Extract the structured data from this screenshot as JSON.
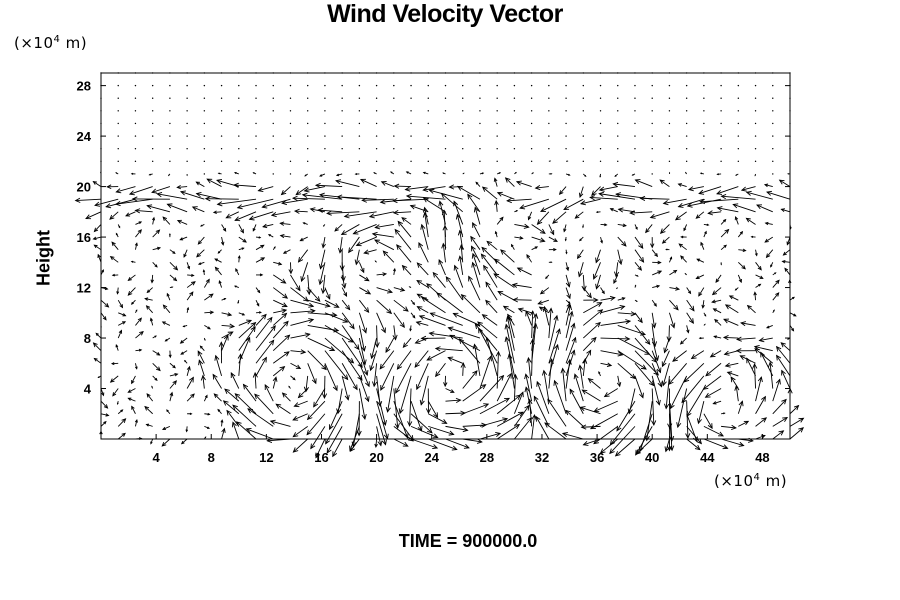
{
  "chart_data": {
    "type": "vector-field",
    "title": "Wind Velocity Vector",
    "ylabel": "Height",
    "xlabel": "",
    "x_unit": {
      "prefix": "(×10",
      "exp": "4",
      "suffix": " m)"
    },
    "y_unit": {
      "prefix": "(×10",
      "exp": "4",
      "suffix": " m)"
    },
    "xlim": [
      0,
      50
    ],
    "ylim": [
      0,
      29
    ],
    "x_ticks": [
      4,
      8,
      12,
      16,
      20,
      24,
      28,
      32,
      36,
      40,
      44,
      48
    ],
    "y_ticks": [
      4,
      8,
      12,
      16,
      20,
      24,
      28
    ],
    "grid": {
      "x0": 0,
      "x1": 50,
      "nx": 41,
      "y0": 0,
      "y1": 29,
      "ny": 30
    },
    "vortices": [
      {
        "x": 25.5,
        "y": 4.5,
        "s": 1.0,
        "w": 3.5,
        "h": 3.5
      },
      {
        "x": 14.0,
        "y": 4.5,
        "s": -0.8,
        "w": 3.0,
        "h": 3.5
      },
      {
        "x": 36.5,
        "y": 4.5,
        "s": -0.9,
        "w": 3.0,
        "h": 3.5
      },
      {
        "x": 45.5,
        "y": 3.0,
        "s": 0.7,
        "w": 3.0,
        "h": 3.0
      },
      {
        "x": 21.0,
        "y": 13.5,
        "s": 0.5,
        "w": 4.0,
        "h": 3.0
      },
      {
        "x": 30.5,
        "y": 15.0,
        "s": -0.4,
        "w": 4.0,
        "h": 3.0
      }
    ],
    "jet": {
      "y": 19,
      "u": -1.0
    },
    "vmax": 1.3
  },
  "time_label": "TIME = 900000.0"
}
